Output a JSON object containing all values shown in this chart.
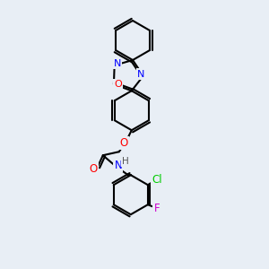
{
  "bg_color": "#e8eef5",
  "bond_color": "#000000",
  "bond_width": 1.5,
  "atom_colors": {
    "N": "#0000ff",
    "O": "#ff0000",
    "Cl": "#00cc00",
    "F": "#cc00cc",
    "C": "#000000",
    "H": "#888888"
  },
  "font_size": 7.5
}
